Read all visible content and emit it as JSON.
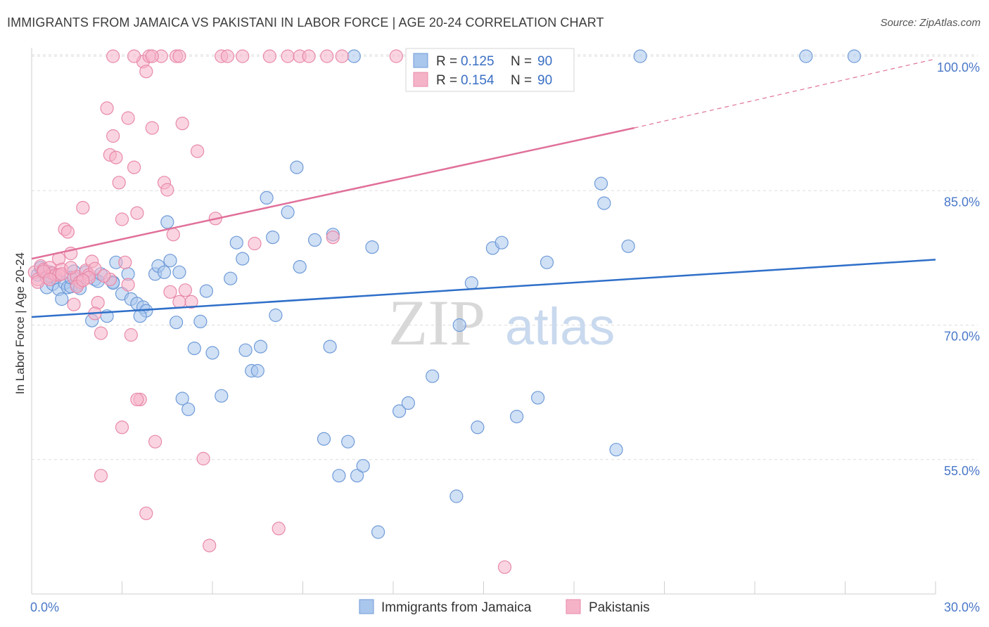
{
  "title": "IMMIGRANTS FROM JAMAICA VS PAKISTANI IN LABOR FORCE | AGE 20-24 CORRELATION CHART",
  "source": "Source: ZipAtlas.com",
  "watermark": {
    "zip": "ZIP",
    "atlas": "atlas"
  },
  "colors": {
    "jamaica_fill": "#a9c6ec",
    "jamaica_stroke": "#6f9bd8",
    "jamaica_line": "#2f6fc9",
    "pakistani_fill": "#f5b3c8",
    "pakistani_stroke": "#e889a8",
    "pakistani_line": "#e0709a",
    "grid": "#dddddd",
    "tick_label": "#4a78c8"
  },
  "legend": {
    "rows": [
      {
        "r_label": "R = ",
        "r_value": "0.125",
        "n_label": "N = ",
        "n_value": "90"
      },
      {
        "r_label": "R = ",
        "r_value": "0.154",
        "n_label": "N = ",
        "n_value": "90"
      }
    ]
  },
  "chart_data": {
    "type": "scatter",
    "title": "IMMIGRANTS FROM JAMAICA VS PAKISTANI IN LABOR FORCE | AGE 20-24 CORRELATION CHART",
    "xlabel": "",
    "ylabel": "In Labor Force | Age 20-24",
    "xlim": [
      0,
      30
    ],
    "ylim": [
      40,
      100
    ],
    "x_tick_labels": [
      "0.0%",
      "30.0%"
    ],
    "y_ticks": [
      55,
      70,
      85,
      100
    ],
    "y_tick_labels": [
      "55.0%",
      "70.0%",
      "85.0%",
      "100.0%"
    ],
    "grid": "horizontal dashed",
    "legend_position": "top-center",
    "series": [
      {
        "name": "Immigrants from Jamaica",
        "color": "#a9c6ec",
        "trend": {
          "x": [
            0,
            30
          ],
          "y": [
            70.9,
            77.3
          ]
        },
        "points": [
          [
            0.2,
            75.6
          ],
          [
            0.3,
            76.4
          ],
          [
            0.4,
            75.8
          ],
          [
            0.5,
            74.2
          ],
          [
            0.6,
            75.9
          ],
          [
            0.7,
            74.6
          ],
          [
            0.8,
            75.3
          ],
          [
            0.9,
            74.0
          ],
          [
            1.0,
            72.9
          ],
          [
            1.1,
            74.7
          ],
          [
            1.2,
            74.2
          ],
          [
            1.3,
            74.3
          ],
          [
            1.4,
            76.0
          ],
          [
            1.5,
            74.5
          ],
          [
            1.6,
            74.1
          ],
          [
            1.8,
            75.9
          ],
          [
            2.0,
            70.5
          ],
          [
            2.1,
            75.1
          ],
          [
            2.2,
            74.9
          ],
          [
            2.3,
            75.7
          ],
          [
            2.5,
            71.0
          ],
          [
            2.7,
            74.8
          ],
          [
            2.8,
            77.0
          ],
          [
            3.0,
            73.5
          ],
          [
            3.2,
            75.7
          ],
          [
            3.3,
            72.9
          ],
          [
            3.5,
            72.4
          ],
          [
            3.7,
            72.0
          ],
          [
            3.8,
            71.6
          ],
          [
            4.1,
            75.7
          ],
          [
            4.2,
            76.6
          ],
          [
            4.4,
            75.9
          ],
          [
            4.5,
            81.5
          ],
          [
            4.6,
            77.2
          ],
          [
            4.8,
            70.3
          ],
          [
            4.9,
            75.9
          ],
          [
            5.0,
            61.8
          ],
          [
            5.2,
            60.6
          ],
          [
            5.4,
            67.4
          ],
          [
            5.6,
            70.4
          ],
          [
            5.8,
            73.8
          ],
          [
            6.0,
            66.9
          ],
          [
            6.3,
            62.1
          ],
          [
            6.6,
            75.2
          ],
          [
            6.8,
            79.2
          ],
          [
            7.0,
            77.4
          ],
          [
            7.1,
            67.2
          ],
          [
            7.3,
            64.9
          ],
          [
            7.5,
            64.9
          ],
          [
            7.6,
            67.6
          ],
          [
            7.8,
            84.2
          ],
          [
            8.0,
            79.8
          ],
          [
            8.1,
            71.1
          ],
          [
            8.5,
            82.6
          ],
          [
            8.8,
            87.6
          ],
          [
            8.9,
            76.5
          ],
          [
            9.4,
            79.5
          ],
          [
            9.7,
            57.3
          ],
          [
            9.9,
            67.6
          ],
          [
            10.0,
            80.1
          ],
          [
            10.2,
            53.2
          ],
          [
            10.5,
            57.0
          ],
          [
            10.7,
            100.0
          ],
          [
            10.8,
            53.2
          ],
          [
            11.0,
            54.3
          ],
          [
            11.3,
            78.7
          ],
          [
            11.5,
            46.9
          ],
          [
            12.2,
            60.4
          ],
          [
            12.5,
            61.3
          ],
          [
            13.3,
            64.3
          ],
          [
            14.1,
            50.9
          ],
          [
            14.2,
            70.0
          ],
          [
            14.6,
            74.7
          ],
          [
            14.8,
            58.6
          ],
          [
            15.3,
            78.6
          ],
          [
            15.6,
            79.2
          ],
          [
            16.1,
            59.8
          ],
          [
            16.8,
            61.9
          ],
          [
            17.1,
            77.0
          ],
          [
            18.9,
            85.8
          ],
          [
            19.0,
            83.6
          ],
          [
            19.4,
            56.1
          ],
          [
            19.8,
            78.8
          ],
          [
            20.2,
            100.0
          ],
          [
            25.7,
            100.0
          ],
          [
            27.3,
            100.0
          ],
          [
            1.3,
            75.3
          ],
          [
            3.6,
            71.0
          ],
          [
            2.7,
            74.7
          ],
          [
            0.6,
            75.5
          ]
        ]
      },
      {
        "name": "Pakistanis",
        "color": "#f5b3c8",
        "trend": {
          "x": [
            0,
            20
          ],
          "y": [
            77.4,
            92.0
          ]
        },
        "trend_dashed": {
          "x": [
            20,
            30
          ],
          "y": [
            92.0,
            99.7
          ]
        },
        "points": [
          [
            0.1,
            75.9
          ],
          [
            0.2,
            75.1
          ],
          [
            0.3,
            76.6
          ],
          [
            0.4,
            76.2
          ],
          [
            0.5,
            75.3
          ],
          [
            0.6,
            76.4
          ],
          [
            0.7,
            75.8
          ],
          [
            0.8,
            75.6
          ],
          [
            0.9,
            77.4
          ],
          [
            1.0,
            76.2
          ],
          [
            1.1,
            80.7
          ],
          [
            1.2,
            80.4
          ],
          [
            1.3,
            78.0
          ],
          [
            1.4,
            75.3
          ],
          [
            1.5,
            75.4
          ],
          [
            1.6,
            74.8
          ],
          [
            1.7,
            83.1
          ],
          [
            1.8,
            76.1
          ],
          [
            1.9,
            75.6
          ],
          [
            2.0,
            77.1
          ],
          [
            2.1,
            76.3
          ],
          [
            2.2,
            72.5
          ],
          [
            2.3,
            69.1
          ],
          [
            2.5,
            94.2
          ],
          [
            2.6,
            89.0
          ],
          [
            2.7,
            91.1
          ],
          [
            2.8,
            88.7
          ],
          [
            2.9,
            85.9
          ],
          [
            3.0,
            81.8
          ],
          [
            3.1,
            77.0
          ],
          [
            3.2,
            93.1
          ],
          [
            3.3,
            68.9
          ],
          [
            3.4,
            87.6
          ],
          [
            3.5,
            82.5
          ],
          [
            3.6,
            61.7
          ],
          [
            3.7,
            99.4
          ],
          [
            3.8,
            98.3
          ],
          [
            3.9,
            100.0
          ],
          [
            4.0,
            92.0
          ],
          [
            4.1,
            57.0
          ],
          [
            4.3,
            100.0
          ],
          [
            4.4,
            85.9
          ],
          [
            4.5,
            85.1
          ],
          [
            4.6,
            73.7
          ],
          [
            4.7,
            80.1
          ],
          [
            4.8,
            100.0
          ],
          [
            4.9,
            100.0
          ],
          [
            5.0,
            92.5
          ],
          [
            5.1,
            73.9
          ],
          [
            5.3,
            72.6
          ],
          [
            5.5,
            89.4
          ],
          [
            5.7,
            55.1
          ],
          [
            5.9,
            45.4
          ],
          [
            6.1,
            81.9
          ],
          [
            6.3,
            100.0
          ],
          [
            6.5,
            100.0
          ],
          [
            7.0,
            100.0
          ],
          [
            7.4,
            79.1
          ],
          [
            7.9,
            100.0
          ],
          [
            8.2,
            47.3
          ],
          [
            8.5,
            100.0
          ],
          [
            8.9,
            100.0
          ],
          [
            9.2,
            100.0
          ],
          [
            9.8,
            100.0
          ],
          [
            10.0,
            79.8
          ],
          [
            10.3,
            100.0
          ],
          [
            12.1,
            100.0
          ],
          [
            0.2,
            74.8
          ],
          [
            2.3,
            53.2
          ],
          [
            3.8,
            49.0
          ],
          [
            15.7,
            43.0
          ],
          [
            1.9,
            75.3
          ],
          [
            0.9,
            75.6
          ],
          [
            2.6,
            75.1
          ],
          [
            1.5,
            74.3
          ],
          [
            3.0,
            58.6
          ],
          [
            3.5,
            61.7
          ],
          [
            4.0,
            100.0
          ],
          [
            4.9,
            72.6
          ],
          [
            1.4,
            72.3
          ],
          [
            2.1,
            71.3
          ],
          [
            0.4,
            76.0
          ],
          [
            0.6,
            75.1
          ],
          [
            1.0,
            75.7
          ],
          [
            1.3,
            76.4
          ],
          [
            1.7,
            75.0
          ],
          [
            2.4,
            75.5
          ],
          [
            3.2,
            74.5
          ],
          [
            3.4,
            100.0
          ],
          [
            2.7,
            100.0
          ]
        ]
      }
    ]
  }
}
